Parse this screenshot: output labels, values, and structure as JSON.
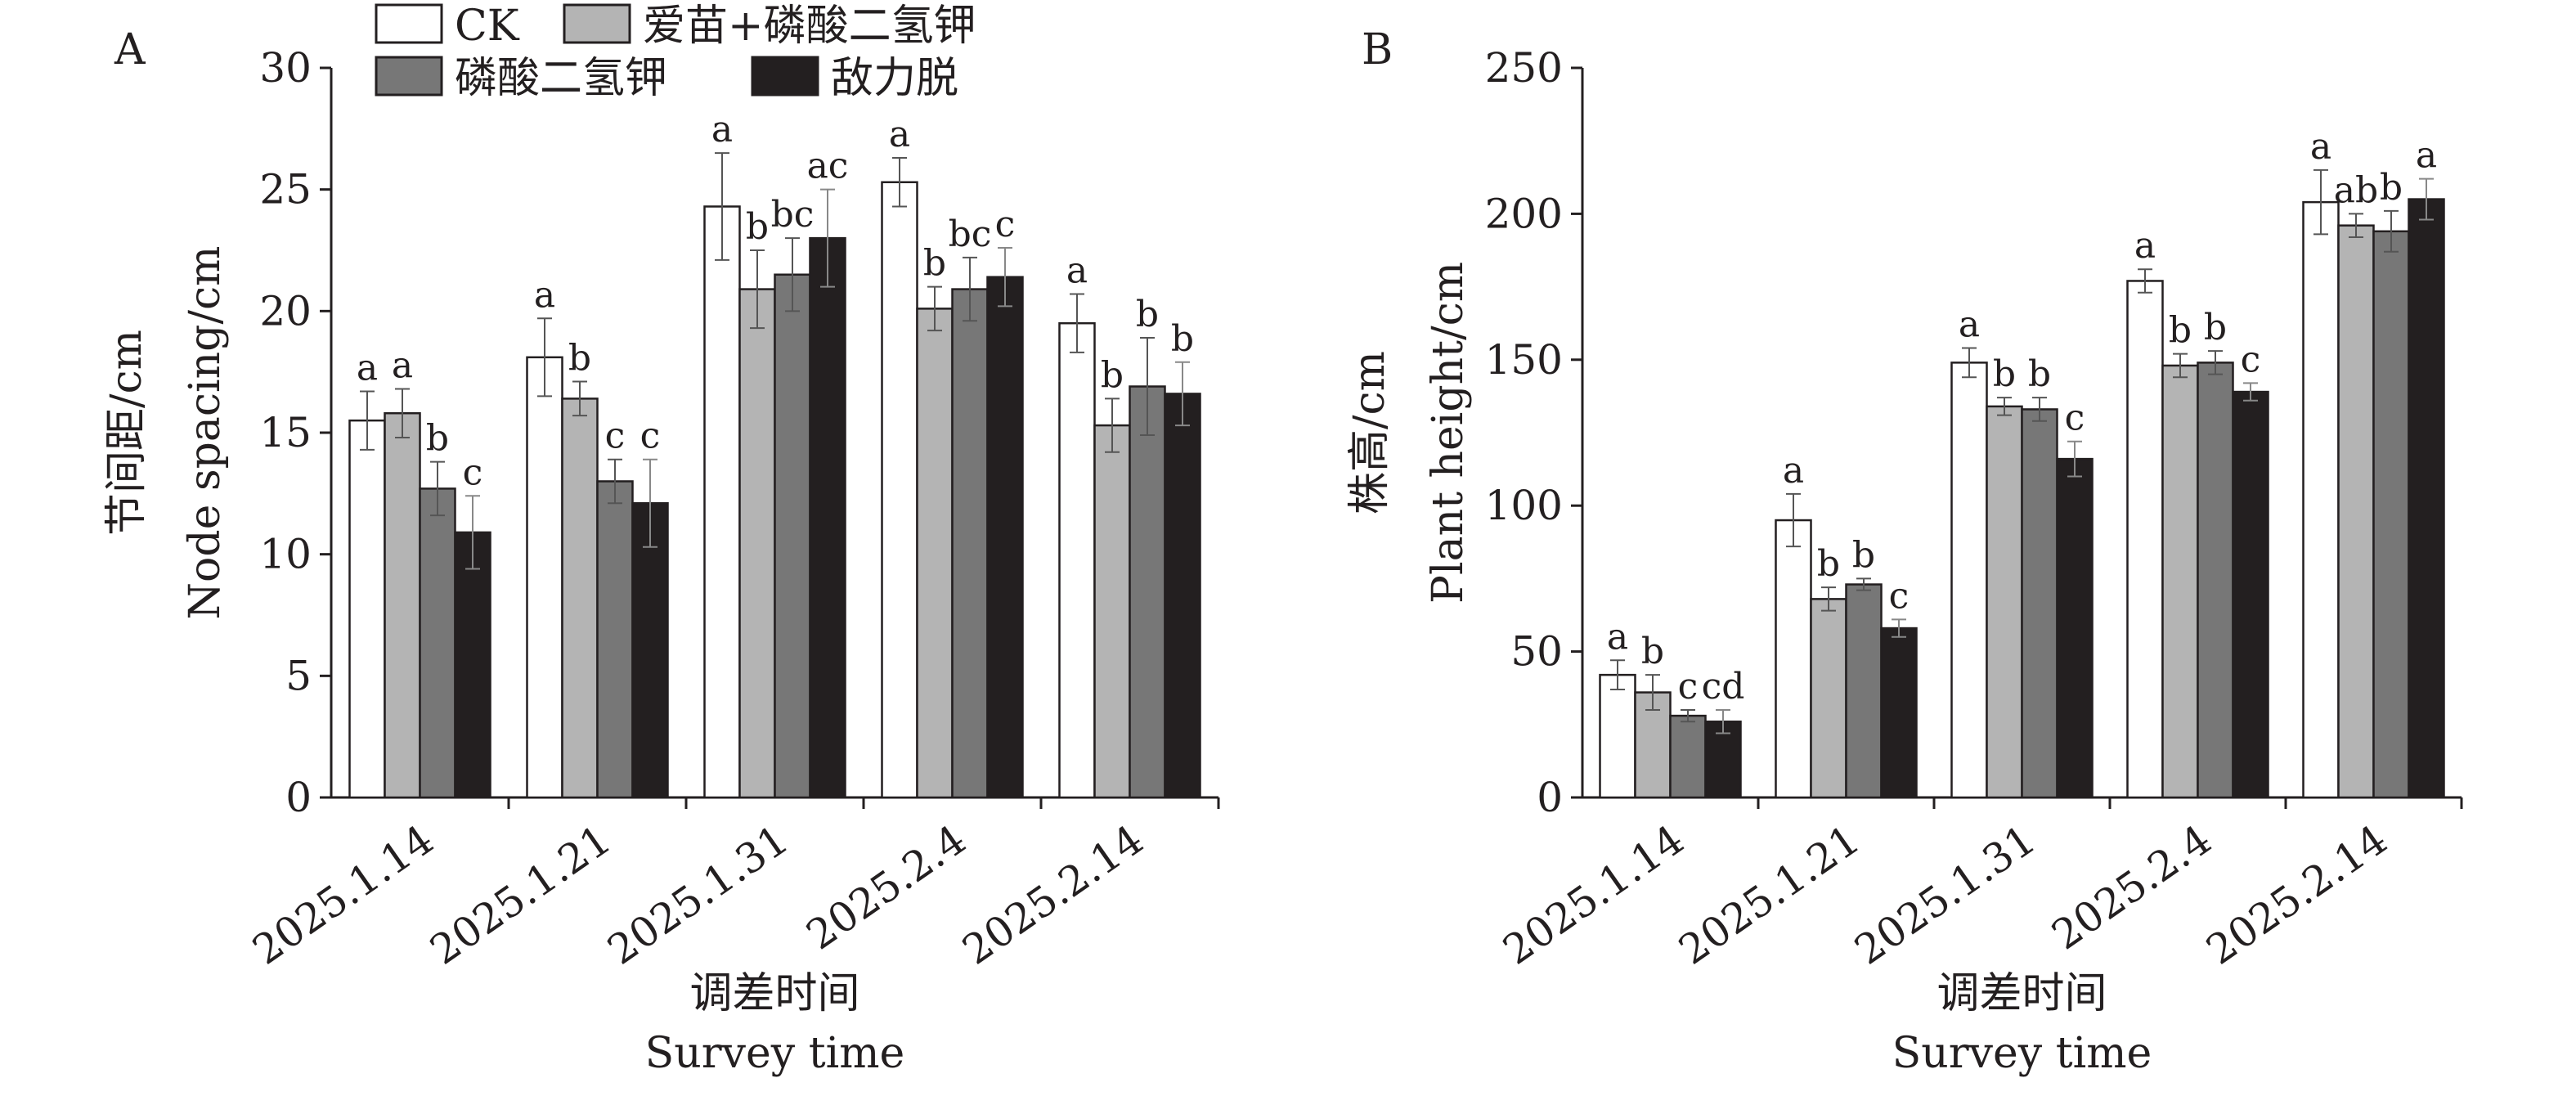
{
  "colors": {
    "ck": "#ffffff",
    "aimiao_kh2po4": "#b4b4b4",
    "kh2po4": "#777777",
    "dilituo": "#231f20",
    "stroke": "#231f20"
  },
  "legend": {
    "items": [
      {
        "label": "CK",
        "color_key": "ck"
      },
      {
        "label": "爱苗+磷酸二氢钾",
        "color_key": "aimiao_kh2po4"
      },
      {
        "label": "磷酸二氢钾",
        "color_key": "kh2po4"
      },
      {
        "label": "敌力脱",
        "color_key": "dilituo"
      }
    ]
  },
  "chart_data": [
    {
      "panel": "A",
      "type": "bar",
      "categories": [
        "2025.1.14",
        "2025.1.21",
        "2025.1.31",
        "2025.2.4",
        "2025.2.14"
      ],
      "xlabel": [
        "调差时间",
        "Survey time"
      ],
      "ylabel": [
        "节间距/cm",
        "Node spacing/cm"
      ],
      "ylim": [
        0,
        30
      ],
      "yticks": [
        0,
        5,
        10,
        15,
        20,
        25,
        30
      ],
      "series": [
        {
          "name": "CK",
          "color_key": "ck",
          "values": [
            15.5,
            18.1,
            24.3,
            25.3,
            19.5
          ],
          "errors": [
            1.2,
            1.6,
            2.2,
            1.0,
            1.2
          ],
          "labels": [
            "a",
            "a",
            "a",
            "a",
            "a"
          ]
        },
        {
          "name": "爱苗+磷酸二氢钾",
          "color_key": "aimiao_kh2po4",
          "values": [
            15.8,
            16.4,
            20.9,
            20.1,
            15.3
          ],
          "errors": [
            1.0,
            0.7,
            1.6,
            0.9,
            1.1
          ],
          "labels": [
            "a",
            "b",
            "b",
            "b",
            "b"
          ]
        },
        {
          "name": "磷酸二氢钾",
          "color_key": "kh2po4",
          "values": [
            12.7,
            13.0,
            21.5,
            20.9,
            16.9
          ],
          "errors": [
            1.1,
            0.9,
            1.5,
            1.3,
            2.0
          ],
          "labels": [
            "b",
            "c",
            "bc",
            "bc",
            "b"
          ]
        },
        {
          "name": "敌力脱",
          "color_key": "dilituo",
          "values": [
            10.9,
            12.1,
            23.0,
            21.4,
            16.6
          ],
          "errors": [
            1.5,
            1.8,
            2.0,
            1.2,
            1.3
          ],
          "labels": [
            "c",
            "c",
            "ac",
            "c",
            "b"
          ]
        }
      ]
    },
    {
      "panel": "B",
      "type": "bar",
      "categories": [
        "2025.1.14",
        "2025.1.21",
        "2025.1.31",
        "2025.2.4",
        "2025.2.14"
      ],
      "xlabel": [
        "调差时间",
        "Survey time"
      ],
      "ylabel": [
        "株高/cm",
        "Plant height/cm"
      ],
      "ylim": [
        0,
        250
      ],
      "yticks": [
        0,
        50,
        100,
        150,
        200,
        250
      ],
      "series": [
        {
          "name": "CK",
          "color_key": "ck",
          "values": [
            42,
            95,
            149,
            177,
            204
          ],
          "errors": [
            5,
            9,
            5,
            4,
            11
          ],
          "labels": [
            "a",
            "a",
            "a",
            "a",
            "a"
          ]
        },
        {
          "name": "爱苗+磷酸二氢钾",
          "color_key": "aimiao_kh2po4",
          "values": [
            36,
            68,
            134,
            148,
            196
          ],
          "errors": [
            6,
            4,
            3,
            4,
            4
          ],
          "labels": [
            "b",
            "b",
            "b",
            "b",
            "ab"
          ]
        },
        {
          "name": "磷酸二氢钾",
          "color_key": "kh2po4",
          "values": [
            28,
            73,
            133,
            149,
            194
          ],
          "errors": [
            2,
            2,
            4,
            4,
            7
          ],
          "labels": [
            "c",
            "b",
            "b",
            "b",
            "b"
          ]
        },
        {
          "name": "敌力脱",
          "color_key": "dilituo",
          "values": [
            26,
            58,
            116,
            139,
            205
          ],
          "errors": [
            4,
            3,
            6,
            3,
            7
          ],
          "labels": [
            "cd",
            "c",
            "c",
            "c",
            "a"
          ]
        }
      ]
    }
  ]
}
